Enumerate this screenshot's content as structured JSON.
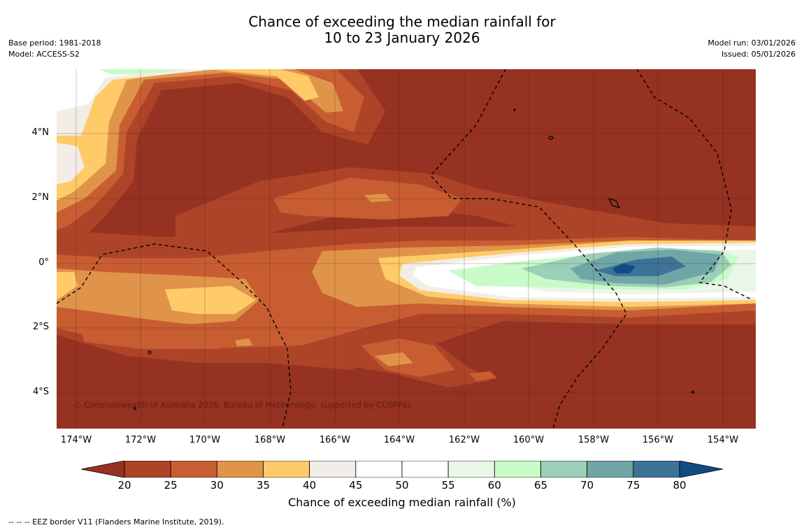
{
  "title": {
    "line1": "Chance of exceeding the median rainfall for",
    "line2": "10 to 23 January 2026"
  },
  "meta": {
    "base_period": "Base period: 1981-2018",
    "model": "Model: ACCESS-S2",
    "model_run": "Model run: 03/01/2026",
    "issued": "Issued: 05/01/2026"
  },
  "map": {
    "lat_labels": [
      "4°N",
      "2°N",
      "0°",
      "2°S",
      "4°S"
    ],
    "lon_labels": [
      "174°W",
      "172°W",
      "170°W",
      "168°W",
      "166°W",
      "164°W",
      "162°W",
      "160°W",
      "158°W",
      "156°W",
      "154°W"
    ],
    "copyright": "© Commonwealth of Australia 2026, Bureau of Meteorology, supported by COSPPac"
  },
  "colorbar": {
    "ticks": [
      "20",
      "25",
      "30",
      "35",
      "40",
      "45",
      "50",
      "55",
      "60",
      "65",
      "70",
      "75",
      "80"
    ],
    "colors": [
      "#963222",
      "#ad4428",
      "#c85d32",
      "#e0944a",
      "#fecb68",
      "#f2ede6",
      "#ffffff",
      "#ffffff",
      "#e9f6e8",
      "#c8fbc8",
      "#9ccfb7",
      "#71a6a7",
      "#3e7398",
      "#104b86"
    ],
    "label": "Chance of exceeding median rainfall (%)"
  },
  "footer": "--  --  -- EEZ border V11 (Flanders Marine Institute, 2019)."
}
